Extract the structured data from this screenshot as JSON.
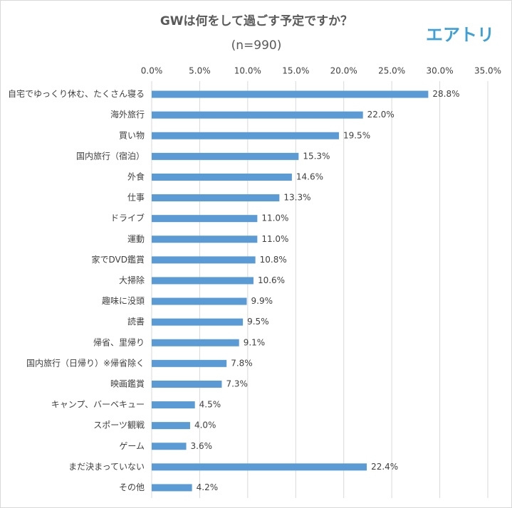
{
  "brand": "エアトリ",
  "chart_data": {
    "type": "barh",
    "title": "GWは何をして過ごす予定ですか？",
    "subtitle": "(n=990)",
    "categories": [
      "自宅でゆっくり休む、たくさん寝る",
      "海外旅行",
      "買い物",
      "国内旅行（宿泊）",
      "外食",
      "仕事",
      "ドライブ",
      "運動",
      "家でDVD鑑賞",
      "大掃除",
      "趣味に没頭",
      "読書",
      "帰省、里帰り",
      "国内旅行（日帰り）※帰省除く",
      "映画鑑賞",
      "キャンプ、バーベキュー",
      "スポーツ観戦",
      "ゲーム",
      "まだ決まっていない",
      "その他"
    ],
    "values": [
      28.8,
      22.0,
      19.5,
      15.3,
      14.6,
      13.3,
      11.0,
      11.0,
      10.8,
      10.6,
      9.9,
      9.5,
      9.1,
      7.8,
      7.3,
      4.5,
      4.0,
      3.6,
      22.4,
      4.2
    ],
    "value_labels": [
      "28.8%",
      "22.0%",
      "19.5%",
      "15.3%",
      "14.6%",
      "13.3%",
      "11.0%",
      "11.0%",
      "10.8%",
      "10.6%",
      "9.9%",
      "9.5%",
      "9.1%",
      "7.8%",
      "7.3%",
      "4.5%",
      "4.0%",
      "3.6%",
      "22.4%",
      "4.2%"
    ],
    "color": "#5b9bd5",
    "xlim": [
      0,
      35
    ],
    "xticks": [
      {
        "value": 0,
        "label": "0.0%"
      },
      {
        "value": 5,
        "label": "5.0%"
      },
      {
        "value": 10,
        "label": "10.0%"
      },
      {
        "value": 15,
        "label": "15.0%"
      },
      {
        "value": 20,
        "label": "20.0%"
      },
      {
        "value": 25,
        "label": "25.0%"
      },
      {
        "value": 30,
        "label": "30.0%"
      },
      {
        "value": 35,
        "label": "35.0%"
      }
    ],
    "grid": true
  }
}
